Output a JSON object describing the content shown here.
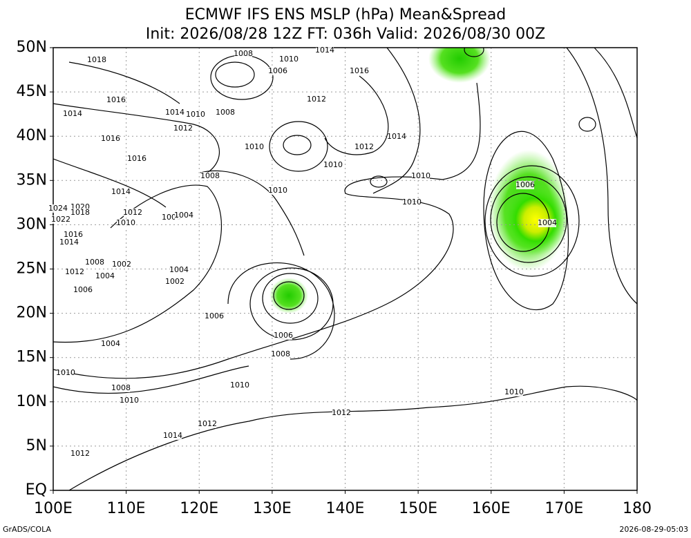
{
  "header": {
    "title": "ECMWF IFS ENS MSLP (hPa) Mean&Spread",
    "subtitle": "Init: 2026/08/28 12Z  FT: 036h  Valid: 2026/08/30 00Z"
  },
  "axes": {
    "lon_labels": [
      "100E",
      "110E",
      "120E",
      "130E",
      "140E",
      "150E",
      "160E",
      "170E",
      "180"
    ],
    "lat_labels": [
      "50N",
      "45N",
      "40N",
      "35N",
      "30N",
      "25N",
      "20N",
      "15N",
      "10N",
      "5N",
      "EQ"
    ]
  },
  "contour_labels": [
    "1018",
    "1008",
    "1010",
    "1014",
    "1006",
    "1016",
    "1016",
    "1012",
    "1014",
    "1014",
    "1010",
    "1008",
    "1012",
    "1014",
    "1016",
    "1010",
    "1012",
    "1016",
    "1010",
    "1008",
    "1010",
    "1006",
    "1014",
    "1010",
    "1010",
    "1024",
    "1020",
    "1018",
    "1012",
    "1006",
    "1004",
    "1022",
    "1010",
    "1004",
    "1016",
    "1014",
    "1008",
    "1002",
    "1004",
    "1012",
    "1004",
    "1002",
    "1006",
    "1006",
    "1006",
    "1004",
    "1008",
    "1010",
    "1010",
    "1008",
    "1010",
    "1010",
    "1012",
    "1012",
    "1014",
    "1012"
  ],
  "footer": {
    "left": "GrADS/COLA",
    "right": "2026-08-29-05:03"
  }
}
